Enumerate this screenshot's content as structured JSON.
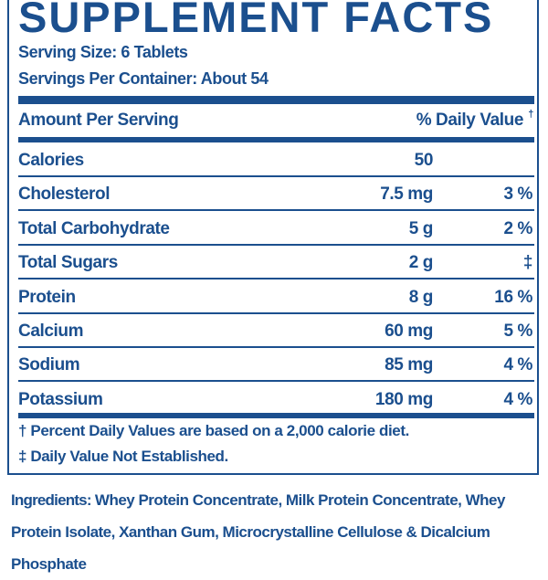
{
  "title": "SUPPLEMENT FACTS",
  "serving_size": "Serving Size: 6 Tablets",
  "servings_per_container": "Servings Per Container: About 54",
  "header": {
    "amount": "Amount Per Serving",
    "daily_value": "% Daily Value",
    "dv_mark": "†"
  },
  "rows": [
    {
      "name": "Calories",
      "amount": "50",
      "dv": ""
    },
    {
      "name": "Cholesterol",
      "amount": "7.5 mg",
      "dv": "3 %"
    },
    {
      "name": "Total Carbohydrate",
      "amount": "5 g",
      "dv": "2 %"
    },
    {
      "name": "Total Sugars",
      "amount": "2 g",
      "dv": "‡"
    },
    {
      "name": "Protein",
      "amount": "8 g",
      "dv": "16 %"
    },
    {
      "name": "Calcium",
      "amount": "60 mg",
      "dv": "5 %"
    },
    {
      "name": "Sodium",
      "amount": "85 mg",
      "dv": "4 %"
    },
    {
      "name": "Potassium",
      "amount": "180 mg",
      "dv": "4 %"
    }
  ],
  "footnotes": [
    "† Percent Daily Values are based on a 2,000 calorie diet.",
    "‡ Daily Value Not Established."
  ],
  "ingredients": {
    "label": "Ingredients:",
    "line1": " Whey Protein Concentrate, Milk Protein Concentrate,",
    "line2": "Whey Protein Isolate, Xanthan Gum, Microcrystalline Cellulose",
    "line3": "& Dicalcium Phosphate"
  },
  "colors": {
    "text": "#1b4f8e",
    "background": "#ffffff"
  }
}
